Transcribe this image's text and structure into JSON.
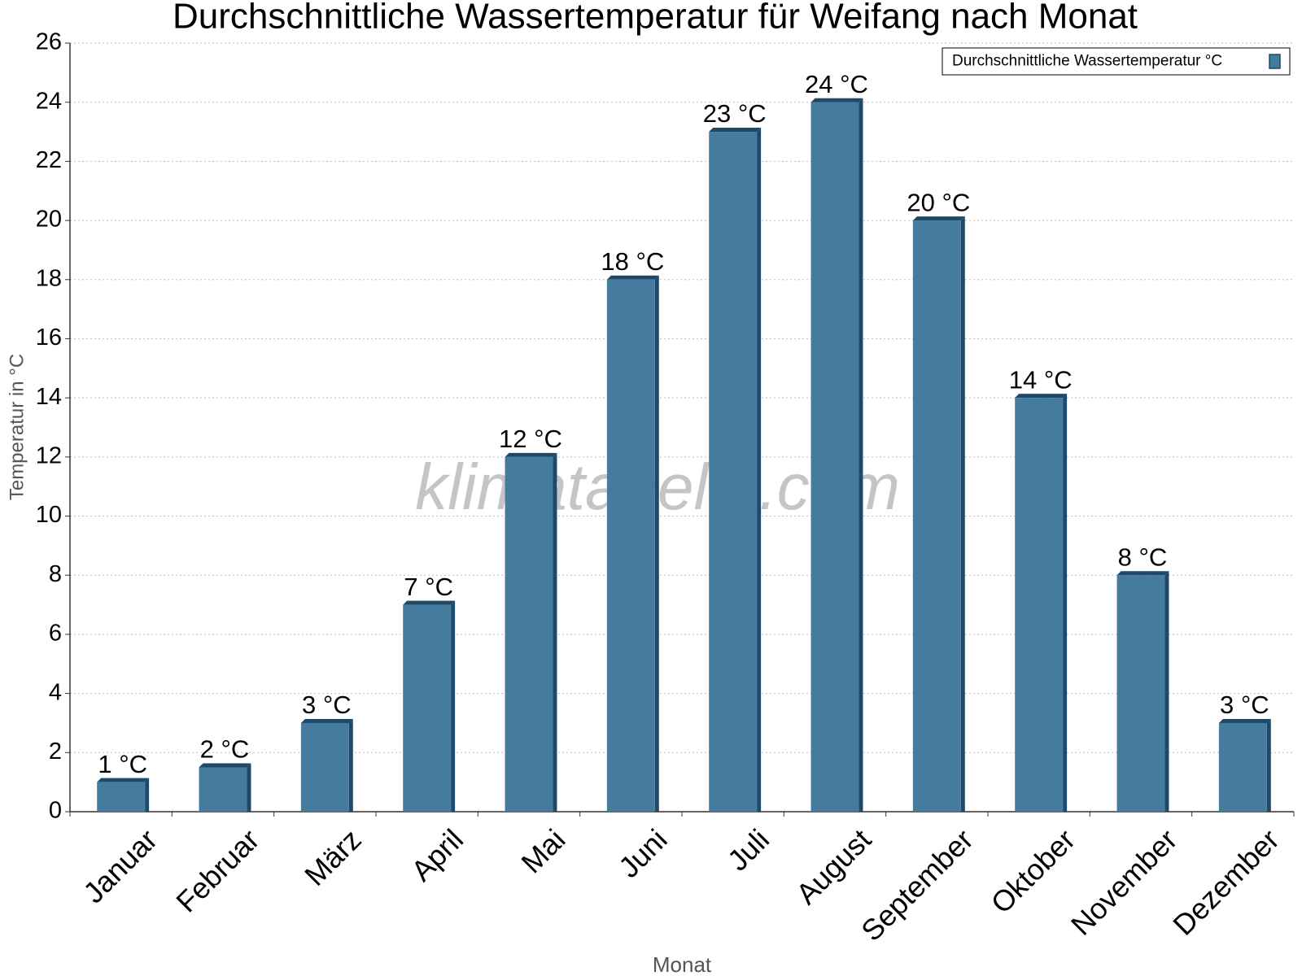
{
  "chart_data": {
    "type": "bar",
    "title": "Durchschnittliche Wassertemperatur für Weifang nach Monat",
    "x_label": "Monat",
    "y_label": "Temperatur in °C",
    "watermark": "klimatabelle.com",
    "categories": [
      "Januar",
      "Februar",
      "März",
      "April",
      "Mai",
      "Juni",
      "Juli",
      "August",
      "September",
      "Oktober",
      "November",
      "Dezember"
    ],
    "series": [
      {
        "name": "Durchschnittliche Wassertemperatur °C",
        "color": "#457b9d",
        "values": [
          1,
          1.5,
          3,
          7,
          12,
          18,
          23,
          24,
          20,
          14,
          8,
          3
        ],
        "value_labels": [
          "1 °C",
          "2 °C",
          "3 °C",
          "7 °C",
          "12 °C",
          "18 °C",
          "23 °C",
          "24 °C",
          "20 °C",
          "14 °C",
          "8 °C",
          "3 °C"
        ]
      }
    ],
    "ylim": [
      0,
      26
    ],
    "yticks": [
      0,
      2,
      4,
      6,
      8,
      10,
      12,
      14,
      16,
      18,
      20,
      22,
      24,
      26
    ],
    "grid": true,
    "legend": "upper right"
  }
}
